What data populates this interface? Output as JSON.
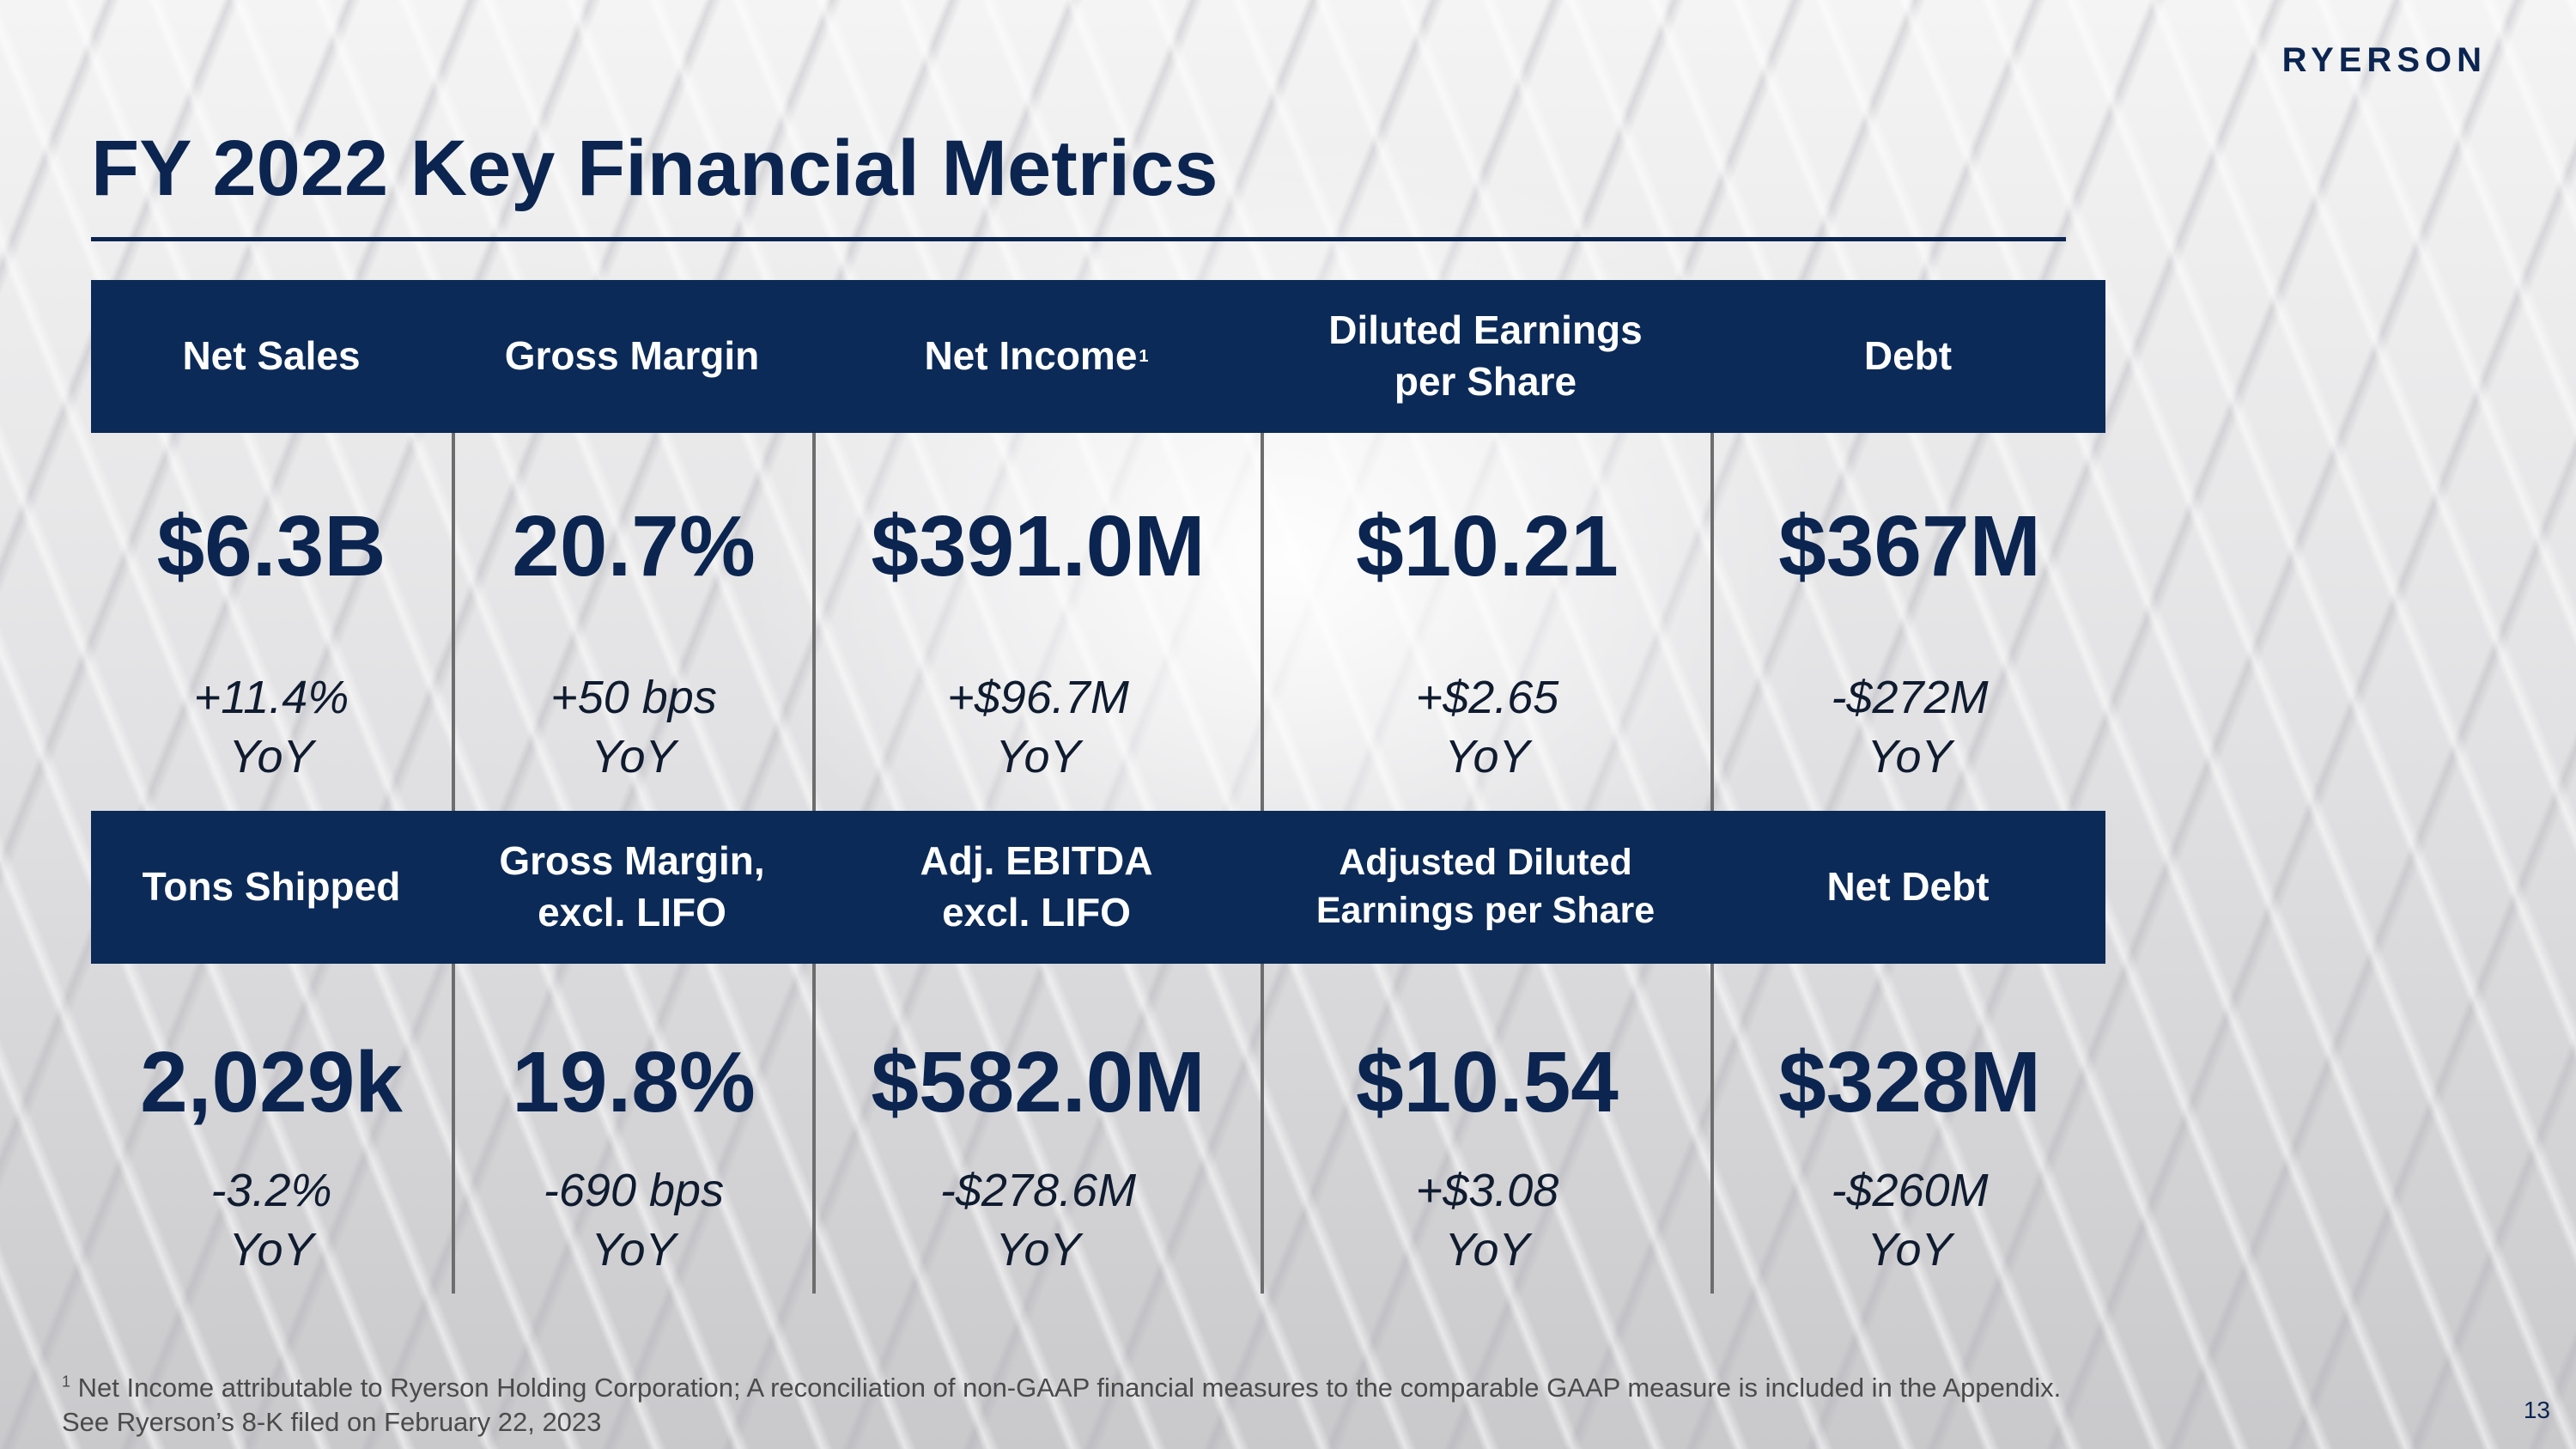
{
  "brand": {
    "logo_text": "RYERSON"
  },
  "slide": {
    "title": "FY 2022 Key Financial Metrics",
    "page_number": "13"
  },
  "row1": [
    {
      "label": "Net Sales",
      "value": "$6.3B",
      "change": "+11.4%\nYoY"
    },
    {
      "label": "Gross Margin",
      "value": "20.7%",
      "change": "+50 bps\nYoY"
    },
    {
      "label": "Net Income",
      "label_sup": "1",
      "value": "$391.0M",
      "change": "+$96.7M\nYoY"
    },
    {
      "label": "Diluted Earnings\nper Share",
      "value": "$10.21",
      "change": "+$2.65\nYoY"
    },
    {
      "label": "Debt",
      "value": "$367M",
      "change": "-$272M\nYoY"
    }
  ],
  "row2": [
    {
      "label": "Tons Shipped",
      "value": "2,029k",
      "change": "-3.2%\nYoY"
    },
    {
      "label": "Gross Margin,\nexcl. LIFO",
      "value": "19.8%",
      "change": "-690 bps\nYoY"
    },
    {
      "label": "Adj. EBITDA\nexcl. LIFO",
      "value": "$582.0M",
      "change": "-$278.6M\nYoY"
    },
    {
      "label": "Adjusted Diluted\nEarnings per Share",
      "value": "$10.54",
      "change": "+$3.08\nYoY"
    },
    {
      "label": "Net Debt",
      "value": "$328M",
      "change": "-$260M\nYoY"
    }
  ],
  "footnote": {
    "marker": "1",
    "line1": "Net Income attributable to Ryerson Holding Corporation; A reconciliation of non-GAAP financial measures to the comparable GAAP measure is included in the Appendix.",
    "line2": "See Ryerson’s 8-K filed on February 22, 2023"
  }
}
